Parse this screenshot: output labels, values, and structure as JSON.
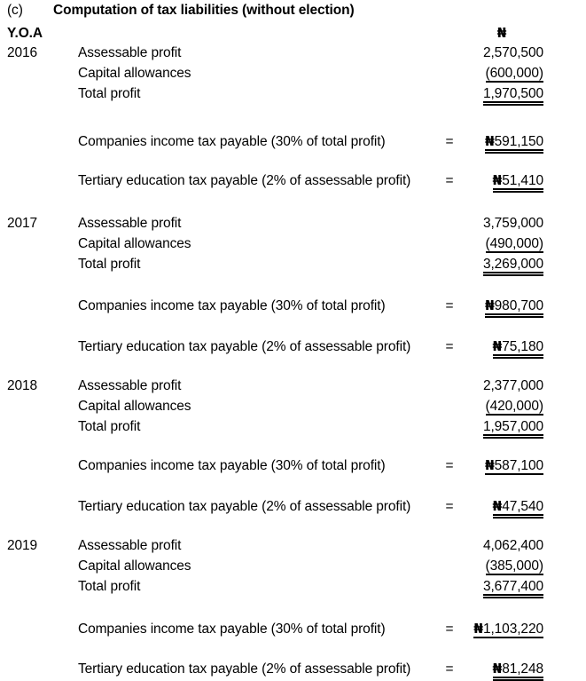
{
  "page": {
    "marker": "(c)",
    "title": "Computation of tax liabilities (without election)"
  },
  "headers": {
    "yoa": "Y.O.A",
    "naira": "₦"
  },
  "labels": {
    "assessable": "Assessable profit",
    "capital": "Capital allowances",
    "total": "Total profit",
    "cit": "Companies income tax payable (30% of total profit)",
    "tet": "Tertiary education tax payable (2% of assessable profit)",
    "equals": "=",
    "naira": "₦"
  },
  "years": [
    {
      "year": "2016",
      "assessable": "2,570,500",
      "capital": "(600,000)",
      "total": "1,970,500",
      "cit": "591,150",
      "tet": "51,410"
    },
    {
      "year": "2017",
      "assessable": "3,759,000",
      "capital": "(490,000)",
      "total": "3,269,000",
      "cit": "980,700",
      "tet": "75,180"
    },
    {
      "year": "2018",
      "assessable": "2,377,000",
      "capital": "(420,000)",
      "total": "1,957,000",
      "cit": "587,100",
      "tet": "47,540"
    },
    {
      "year": "2019",
      "assessable": "4,062,400",
      "capital": "(385,000)",
      "total": "3,677,400",
      "cit": "1,103,220",
      "tet": "81,248"
    }
  ]
}
